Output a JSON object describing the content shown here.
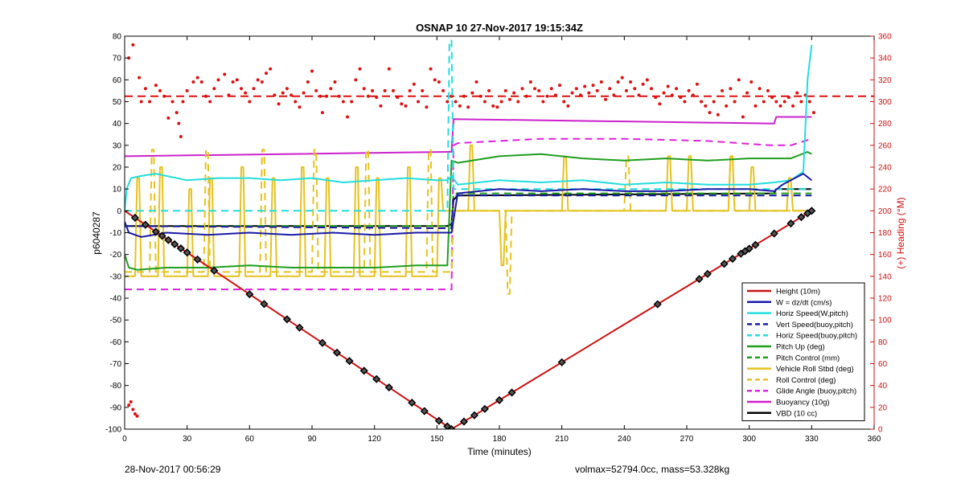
{
  "chart_data": {
    "type": "line",
    "title": "OSNAP 10 27-Nov-2017 19:15:34Z",
    "xlabel": "Time (minutes)",
    "ylabel_left": "p6040287",
    "ylabel_right": "(+) Heading (°M)",
    "xlim": [
      0,
      360
    ],
    "ylim_left": [
      -100,
      80
    ],
    "ylim_right": [
      0,
      360
    ],
    "x_ticks": [
      0,
      30,
      60,
      90,
      120,
      150,
      180,
      210,
      240,
      270,
      300,
      330,
      360
    ],
    "y_ticks_left": [
      80,
      70,
      60,
      50,
      40,
      30,
      20,
      10,
      0,
      -10,
      -20,
      -30,
      -40,
      -50,
      -60,
      -70,
      -80,
      -90,
      -100
    ],
    "y_ticks_right": [
      360,
      340,
      320,
      300,
      280,
      260,
      240,
      220,
      200,
      180,
      160,
      140,
      120,
      100,
      80,
      60,
      40,
      20,
      0
    ],
    "grid": false,
    "legend_position": "bottom-right",
    "colors": {
      "heading": "#dd1111",
      "right_axis": "#cc1111"
    },
    "heading_mean": 305,
    "heading_points": [
      [
        2,
        340
      ],
      [
        4,
        352
      ],
      [
        7,
        322
      ],
      [
        8,
        300
      ],
      [
        10,
        312
      ],
      [
        12,
        300
      ],
      [
        15,
        315
      ],
      [
        17,
        310
      ],
      [
        19,
        305
      ],
      [
        21,
        285
      ],
      [
        23,
        300
      ],
      [
        25,
        290
      ],
      [
        26,
        280
      ],
      [
        27,
        268
      ],
      [
        28,
        300
      ],
      [
        30,
        310
      ],
      [
        33,
        318
      ],
      [
        35,
        322
      ],
      [
        37,
        318
      ],
      [
        39,
        305
      ],
      [
        41,
        300
      ],
      [
        43,
        312
      ],
      [
        45,
        320
      ],
      [
        48,
        325
      ],
      [
        50,
        306
      ],
      [
        52,
        318
      ],
      [
        54,
        320
      ],
      [
        56,
        312
      ],
      [
        58,
        308
      ],
      [
        60,
        300
      ],
      [
        62,
        312
      ],
      [
        64,
        320
      ],
      [
        66,
        318
      ],
      [
        68,
        326
      ],
      [
        70,
        330
      ],
      [
        72,
        306
      ],
      [
        74,
        298
      ],
      [
        76,
        308
      ],
      [
        78,
        312
      ],
      [
        80,
        306
      ],
      [
        82,
        300
      ],
      [
        84,
        295
      ],
      [
        86,
        308
      ],
      [
        88,
        318
      ],
      [
        90,
        328
      ],
      [
        92,
        310
      ],
      [
        94,
        305
      ],
      [
        95,
        290
      ],
      [
        97,
        305
      ],
      [
        99,
        312
      ],
      [
        101,
        318
      ],
      [
        103,
        305
      ],
      [
        105,
        300
      ],
      [
        107,
        286
      ],
      [
        109,
        300
      ],
      [
        111,
        320
      ],
      [
        113,
        330
      ],
      [
        115,
        312
      ],
      [
        117,
        305
      ],
      [
        119,
        310
      ],
      [
        121,
        304
      ],
      [
        123,
        296
      ],
      [
        125,
        310
      ],
      [
        127,
        330
      ],
      [
        129,
        310
      ],
      [
        131,
        304
      ],
      [
        133,
        298
      ],
      [
        135,
        296
      ],
      [
        137,
        310
      ],
      [
        139,
        316
      ],
      [
        141,
        300
      ],
      [
        143,
        310
      ],
      [
        145,
        295
      ],
      [
        147,
        330
      ],
      [
        149,
        320
      ],
      [
        151,
        318
      ],
      [
        153,
        310
      ],
      [
        155,
        300
      ],
      [
        157,
        305
      ],
      [
        159,
        300
      ],
      [
        161,
        296
      ],
      [
        163,
        305
      ],
      [
        165,
        295
      ],
      [
        167,
        308
      ],
      [
        169,
        318
      ],
      [
        171,
        305
      ],
      [
        173,
        300
      ],
      [
        175,
        310
      ],
      [
        177,
        296
      ],
      [
        179,
        295
      ],
      [
        181,
        300
      ],
      [
        183,
        310
      ],
      [
        185,
        302
      ],
      [
        187,
        308
      ],
      [
        189,
        300
      ],
      [
        191,
        312
      ],
      [
        193,
        305
      ],
      [
        195,
        318
      ],
      [
        197,
        312
      ],
      [
        199,
        310
      ],
      [
        201,
        300
      ],
      [
        203,
        305
      ],
      [
        205,
        312
      ],
      [
        207,
        306
      ],
      [
        209,
        315
      ],
      [
        211,
        300
      ],
      [
        213,
        296
      ],
      [
        215,
        308
      ],
      [
        217,
        312
      ],
      [
        219,
        306
      ],
      [
        221,
        314
      ],
      [
        223,
        308
      ],
      [
        225,
        315
      ],
      [
        227,
        310
      ],
      [
        229,
        318
      ],
      [
        231,
        302
      ],
      [
        233,
        312
      ],
      [
        235,
        306
      ],
      [
        237,
        318
      ],
      [
        239,
        322
      ],
      [
        241,
        310
      ],
      [
        243,
        318
      ],
      [
        245,
        312
      ],
      [
        247,
        306
      ],
      [
        249,
        316
      ],
      [
        251,
        320
      ],
      [
        253,
        312
      ],
      [
        255,
        304
      ],
      [
        257,
        298
      ],
      [
        259,
        308
      ],
      [
        261,
        314
      ],
      [
        263,
        306
      ],
      [
        265,
        312
      ],
      [
        267,
        304
      ],
      [
        269,
        300
      ],
      [
        271,
        310
      ],
      [
        273,
        306
      ],
      [
        275,
        316
      ],
      [
        277,
        300
      ],
      [
        279,
        296
      ],
      [
        281,
        290
      ],
      [
        283,
        300
      ],
      [
        285,
        288
      ],
      [
        287,
        310
      ],
      [
        289,
        296
      ],
      [
        291,
        312
      ],
      [
        293,
        300
      ],
      [
        295,
        320
      ],
      [
        297,
        286
      ],
      [
        299,
        308
      ],
      [
        301,
        318
      ],
      [
        303,
        296
      ],
      [
        305,
        312
      ],
      [
        307,
        300
      ],
      [
        309,
        310
      ],
      [
        311,
        304
      ],
      [
        313,
        300
      ],
      [
        315,
        296
      ],
      [
        317,
        300
      ],
      [
        319,
        304
      ],
      [
        321,
        296
      ],
      [
        323,
        308
      ],
      [
        325,
        300
      ],
      [
        327,
        306
      ],
      [
        329,
        300
      ],
      [
        331,
        290
      ],
      [
        2,
        22
      ],
      [
        3,
        25
      ],
      [
        4,
        18
      ],
      [
        5,
        14
      ],
      [
        6,
        12
      ]
    ],
    "series": [
      {
        "name": "Height (10m)",
        "axis": "left",
        "color": "#cc1111",
        "dash": "solid",
        "width": 2,
        "marker": "diamond",
        "x": [
          0,
          157,
          330
        ],
        "y": [
          0,
          -100,
          0
        ],
        "marker_x": [
          5,
          10,
          15,
          18,
          21,
          24,
          27,
          30,
          35,
          43,
          60,
          67,
          78,
          84,
          95,
          102,
          108,
          115,
          121,
          127,
          138,
          144,
          151,
          155,
          157,
          163,
          168,
          173,
          180,
          186,
          210,
          256,
          276,
          280,
          288,
          292,
          296,
          298,
          300,
          303,
          312,
          320,
          325,
          328,
          330
        ]
      },
      {
        "name": "W = dz/dt (cm/s)",
        "axis": "left",
        "color": "#1a1aa8",
        "dash": "solid",
        "width": 2,
        "x": [
          0,
          2,
          8,
          20,
          40,
          60,
          80,
          100,
          120,
          140,
          155,
          157,
          160,
          180,
          200,
          220,
          240,
          260,
          280,
          300,
          312,
          316,
          320,
          326,
          330
        ],
        "y": [
          -5,
          -10,
          -12,
          -10,
          -11,
          -10,
          -11,
          -10,
          -11,
          -10,
          -10,
          -10,
          8,
          10,
          9,
          10,
          9,
          9,
          10,
          10,
          9,
          12,
          14,
          17,
          14
        ]
      },
      {
        "name": "Horiz Speed(W,pitch)",
        "axis": "left",
        "color": "#22dddd",
        "dash": "solid",
        "width": 2,
        "x": [
          0,
          1,
          3,
          8,
          15,
          30,
          45,
          60,
          75,
          90,
          105,
          120,
          135,
          150,
          155,
          157,
          160,
          180,
          200,
          220,
          240,
          260,
          280,
          300,
          312,
          320,
          326,
          328,
          330
        ],
        "y": [
          0,
          10,
          15,
          16,
          17,
          14,
          15,
          15,
          14,
          15,
          13,
          14,
          15,
          14,
          14,
          16,
          12,
          14,
          13,
          14,
          12,
          13,
          12,
          12,
          13,
          14,
          18,
          60,
          76
        ]
      },
      {
        "name": "Vert Speed(buoy,pitch)",
        "axis": "left",
        "color": "#1a1aa8",
        "dash": "dashed",
        "width": 2,
        "x": [
          0,
          157,
          158,
          330
        ],
        "y": [
          -7,
          -8,
          7,
          7
        ]
      },
      {
        "name": "Horiz Speed(buoy,pitch)",
        "axis": "left",
        "color": "#22dddd",
        "dash": "dashed",
        "width": 2,
        "x": [
          0,
          155,
          156,
          157,
          158,
          330
        ],
        "y": [
          0,
          0,
          78,
          78,
          10,
          10
        ]
      },
      {
        "name": "Pitch Up (deg)",
        "axis": "left",
        "color": "#1e9e1e",
        "dash": "solid",
        "width": 2,
        "x": [
          0,
          2,
          6,
          20,
          40,
          60,
          80,
          100,
          120,
          140,
          155,
          157,
          160,
          180,
          200,
          220,
          240,
          260,
          280,
          300,
          320,
          328,
          330
        ],
        "y": [
          -20,
          -26,
          -27,
          -26,
          -26,
          -25,
          -26,
          -26,
          -26,
          -25,
          -25,
          23,
          22,
          25,
          26,
          24,
          23,
          24,
          23,
          24,
          24,
          27,
          26
        ]
      },
      {
        "name": "Pitch Control (mm)",
        "axis": "left",
        "color": "#1e9e1e",
        "dash": "dashed",
        "width": 2,
        "x": [
          0,
          157,
          158,
          312,
          313,
          330
        ],
        "y": [
          -7,
          -7,
          8,
          8,
          8,
          8
        ]
      },
      {
        "name": "Vehicle Roll Stbd (deg)",
        "axis": "left",
        "color": "#e6c21e",
        "dash": "solid",
        "width": 2,
        "x": [
          0,
          5,
          6,
          7,
          8,
          16,
          17,
          18,
          19,
          30,
          31,
          32,
          33,
          40,
          41,
          42,
          43,
          55,
          56,
          57,
          58,
          70,
          71,
          72,
          73,
          84,
          85,
          86,
          87,
          96,
          97,
          98,
          99,
          110,
          111,
          112,
          113,
          120,
          121,
          122,
          123,
          135,
          136,
          137,
          138,
          150,
          151,
          152,
          153,
          157,
          158,
          165,
          166,
          167,
          168,
          180,
          181,
          182,
          183,
          210,
          211,
          212,
          213,
          260,
          261,
          262,
          263,
          270,
          271,
          272,
          273,
          290,
          291,
          292,
          293,
          300,
          301,
          302,
          303,
          318,
          319,
          320,
          321,
          330
        ],
        "y": [
          -30,
          -30,
          15,
          15,
          -30,
          -30,
          20,
          20,
          -30,
          -30,
          10,
          10,
          -30,
          -30,
          15,
          15,
          -30,
          -30,
          20,
          20,
          -30,
          -30,
          15,
          15,
          -30,
          -30,
          20,
          20,
          -30,
          -30,
          15,
          15,
          -30,
          -30,
          20,
          20,
          -30,
          -30,
          15,
          15,
          -30,
          -30,
          20,
          20,
          -30,
          -30,
          15,
          15,
          0,
          0,
          0,
          0,
          30,
          30,
          0,
          0,
          -25,
          -25,
          0,
          0,
          25,
          25,
          0,
          0,
          25,
          25,
          0,
          0,
          25,
          25,
          0,
          0,
          25,
          25,
          0,
          0,
          20,
          20,
          0,
          0,
          15,
          15,
          0,
          0
        ]
      },
      {
        "name": "Roll Control (deg)",
        "axis": "left",
        "color": "#e6c21e",
        "dash": "dashed",
        "width": 2,
        "x": [
          0,
          12,
          13,
          14,
          15,
          38,
          39,
          40,
          41,
          65,
          66,
          67,
          68,
          90,
          91,
          92,
          93,
          115,
          116,
          117,
          118,
          145,
          146,
          147,
          148,
          157,
          158,
          183,
          184,
          185,
          186,
          240,
          241,
          242,
          243,
          290,
          291,
          292,
          293,
          330
        ],
        "y": [
          -28,
          -28,
          28,
          28,
          -28,
          -28,
          28,
          28,
          -28,
          -28,
          28,
          28,
          -28,
          -28,
          28,
          28,
          -28,
          -28,
          28,
          28,
          -28,
          -28,
          28,
          28,
          -28,
          -28,
          0,
          0,
          -38,
          -38,
          0,
          0,
          25,
          25,
          0,
          0,
          25,
          25,
          0,
          0
        ]
      },
      {
        "name": "Glide Angle (buoy,pitch)",
        "axis": "left",
        "color": "#dd22dd",
        "dash": "dashed",
        "width": 2,
        "x": [
          0,
          157,
          158,
          160,
          200,
          240,
          280,
          310,
          320,
          330
        ],
        "y": [
          -36,
          -36,
          30,
          31,
          33,
          33,
          32,
          30,
          30,
          33
        ]
      },
      {
        "name": "Buoyancy (10g)",
        "axis": "left",
        "color": "#cc22cc",
        "dash": "solid",
        "width": 2,
        "x": [
          0,
          155,
          157,
          158,
          312,
          313,
          330
        ],
        "y": [
          25,
          27,
          27,
          42,
          40,
          43,
          43
        ]
      },
      {
        "name": "VBD (10 cc)",
        "axis": "left",
        "color": "#000000",
        "dash": "solid",
        "width": 2,
        "x": [
          0,
          155,
          157,
          158,
          160,
          312,
          313,
          330
        ],
        "y": [
          -7,
          -7,
          -6,
          5,
          7,
          8,
          10,
          10
        ]
      }
    ]
  },
  "footer": {
    "date": "28-Nov-2017 00:56:29",
    "stats": "volmax=52794.0cc, mass=53.328kg"
  }
}
